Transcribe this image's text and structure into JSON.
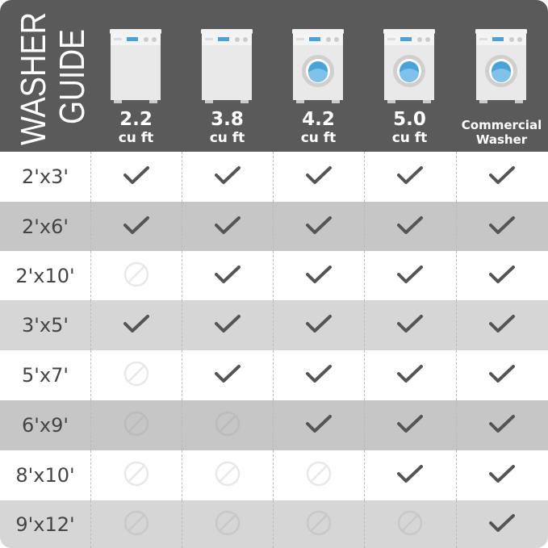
{
  "title": {
    "line1": "WASHER",
    "line2": "GUIDE"
  },
  "columns": [
    {
      "size": "2.2",
      "unit": "cu ft",
      "type": "door"
    },
    {
      "size": "3.8",
      "unit": "cu ft",
      "type": "door"
    },
    {
      "size": "4.2",
      "unit": "cu ft",
      "type": "front-load"
    },
    {
      "size": "5.0",
      "unit": "cu ft",
      "type": "front-load"
    },
    {
      "size": "Commercial",
      "unit": "Washer",
      "type": "front-load"
    }
  ],
  "rows": [
    {
      "label": "2'x3'",
      "fits": [
        true,
        true,
        true,
        true,
        true
      ],
      "shade": "#ffffff"
    },
    {
      "label": "2'x6'",
      "fits": [
        true,
        true,
        true,
        true,
        true
      ],
      "shade": "#c6c6c6"
    },
    {
      "label": "2'x10'",
      "fits": [
        false,
        true,
        true,
        true,
        true
      ],
      "shade": "#ffffff"
    },
    {
      "label": "3'x5'",
      "fits": [
        true,
        true,
        true,
        true,
        true
      ],
      "shade": "#d6d6d6"
    },
    {
      "label": "5'x7'",
      "fits": [
        false,
        true,
        true,
        true,
        true
      ],
      "shade": "#ffffff"
    },
    {
      "label": "6'x9'",
      "fits": [
        false,
        false,
        true,
        true,
        true
      ],
      "shade": "#c6c6c6"
    },
    {
      "label": "8'x10'",
      "fits": [
        false,
        false,
        false,
        true,
        true
      ],
      "shade": "#ffffff"
    },
    {
      "label": "9'x12'",
      "fits": [
        false,
        false,
        false,
        false,
        true
      ],
      "shade": "#d6d6d6"
    }
  ],
  "icons": {
    "yes": "check-icon",
    "no": "prohibited-icon"
  },
  "colors": {
    "header": "#5a5a5a",
    "check": "#555555",
    "drum": "#4aa3d8"
  }
}
